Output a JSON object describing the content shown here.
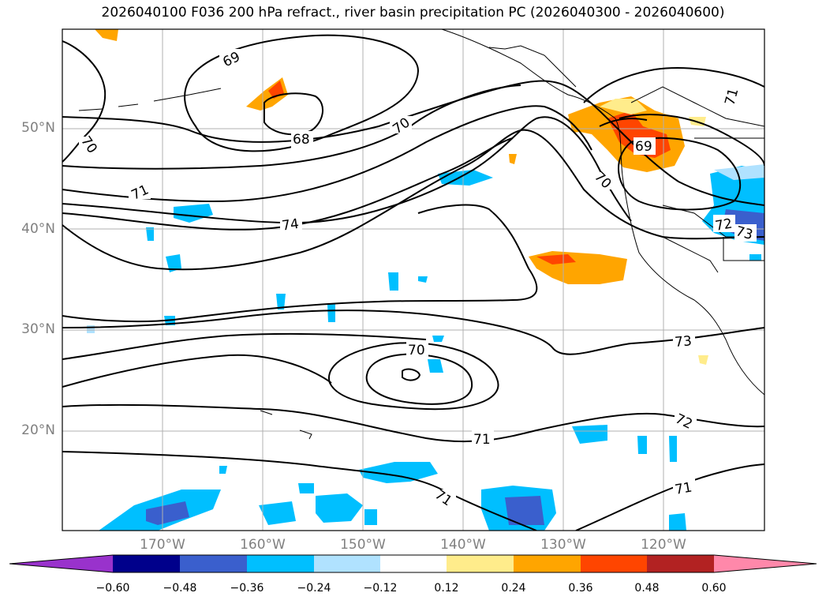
{
  "title": "2026040100 F036 200 hPa refract., river basin precipitation PC (2026040300 - 2026040600)",
  "lat_labels": [
    "50°N",
    "40°N",
    "30°N",
    "20°N"
  ],
  "lon_labels": [
    "170°W",
    "160°W",
    "150°W",
    "140°W",
    "130°W",
    "120°W"
  ],
  "colorbar": {
    "ticks": [
      "−0.60",
      "−0.48",
      "−0.36",
      "−0.24",
      "−0.12",
      "0.12",
      "0.24",
      "0.36",
      "0.48",
      "0.60"
    ],
    "colors": [
      "#9932cc",
      "#00008b",
      "#3a5fcd",
      "#00bfff",
      "#b0e2ff",
      "#ffffff",
      "#ffec8b",
      "#ffa500",
      "#ff4500",
      "#b22222",
      "#ff88aa"
    ]
  },
  "contour_labels": [
    {
      "text": "69"
    },
    {
      "text": "68"
    },
    {
      "text": "70"
    },
    {
      "text": "70"
    },
    {
      "text": "71"
    },
    {
      "text": "74"
    },
    {
      "text": "69"
    },
    {
      "text": "70"
    },
    {
      "text": "71"
    },
    {
      "text": "72"
    },
    {
      "text": "73"
    },
    {
      "text": "70"
    },
    {
      "text": "73"
    },
    {
      "text": "71"
    },
    {
      "text": "72"
    },
    {
      "text": "71"
    },
    {
      "text": "71"
    }
  ],
  "colors": {
    "contour": "#000000",
    "grid": "#b0b0b0",
    "axis_label": "#808080"
  }
}
